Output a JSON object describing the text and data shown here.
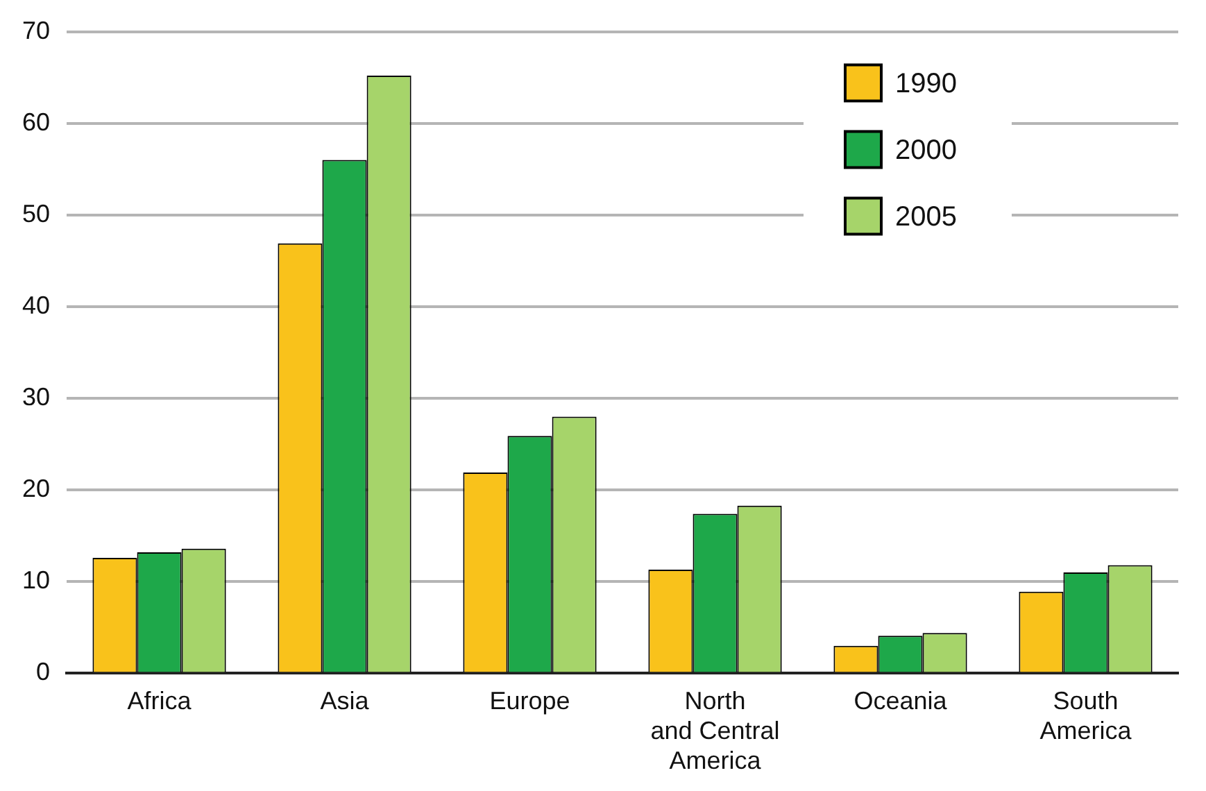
{
  "chart_data": {
    "type": "bar",
    "categories": [
      "Africa",
      "Asia",
      "Europe",
      "North\nand Central\nAmerica",
      "Oceania",
      "South\nAmerica"
    ],
    "series": [
      {
        "name": "1990",
        "color": "#f9c21b",
        "values": [
          12.6,
          46.9,
          21.9,
          11.3,
          3,
          8.9
        ]
      },
      {
        "name": "2000",
        "color": "#1ea84a",
        "values": [
          13.2,
          56,
          25.9,
          17.4,
          4.1,
          11
        ]
      },
      {
        "name": "2005",
        "color": "#a6d46a",
        "values": [
          13.6,
          65.2,
          28,
          18.3,
          4.4,
          11.8
        ]
      }
    ],
    "ylim": [
      0,
      70
    ],
    "yticks": [
      0,
      10,
      20,
      30,
      40,
      50,
      60,
      70
    ],
    "grid": "y",
    "legend": "top right"
  }
}
